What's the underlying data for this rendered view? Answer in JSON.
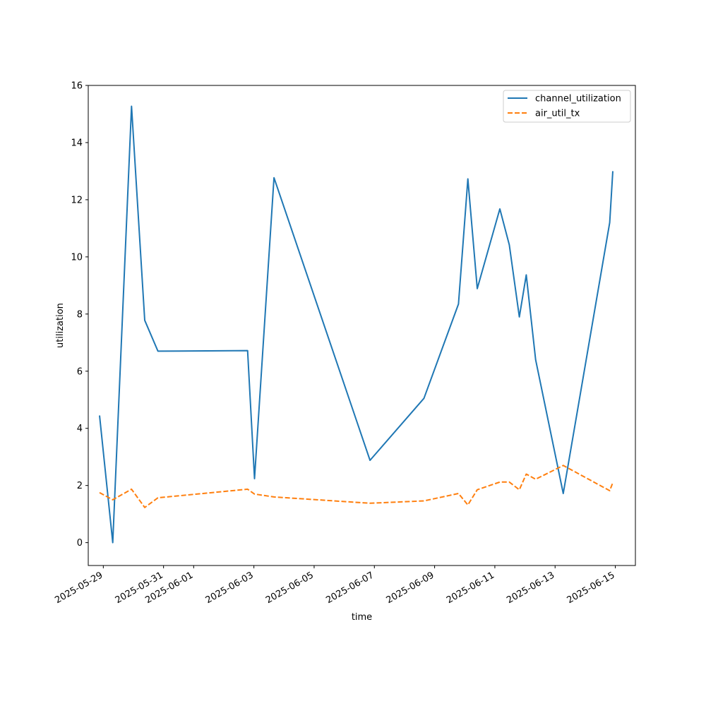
{
  "chart_data": {
    "type": "line",
    "xlabel": "time",
    "ylabel": "utilization",
    "xlim": [
      "2025-05-28 12:00",
      "2025-06-15 16:00"
    ],
    "ylim": [
      -0.8,
      16
    ],
    "x_ticks": [
      "2025-05-29",
      "2025-05-31",
      "2025-06-01",
      "2025-06-03",
      "2025-06-05",
      "2025-06-07",
      "2025-06-09",
      "2025-06-11",
      "2025-06-13",
      "2025-06-15"
    ],
    "y_ticks": [
      0,
      2,
      4,
      6,
      8,
      10,
      12,
      14,
      16
    ],
    "legend_position": "top-right",
    "grid": false,
    "series": [
      {
        "name": "channel_utilization",
        "color": "#1f77b4",
        "style": "solid",
        "points": [
          [
            "2025-05-28 21:00",
            4.45
          ],
          [
            "2025-05-29 07:30",
            0.0
          ],
          [
            "2025-05-29 22:30",
            15.27
          ],
          [
            "2025-05-30 09:00",
            7.78
          ],
          [
            "2025-05-30 19:30",
            6.7
          ],
          [
            "2025-06-02 19:00",
            6.72
          ],
          [
            "2025-06-03 00:30",
            2.24
          ],
          [
            "2025-06-03 16:00",
            12.77
          ],
          [
            "2025-06-06 20:30",
            2.88
          ],
          [
            "2025-06-08 15:30",
            5.05
          ],
          [
            "2025-06-09 19:00",
            8.35
          ],
          [
            "2025-06-10 02:30",
            12.73
          ],
          [
            "2025-06-10 10:00",
            8.89
          ],
          [
            "2025-06-11 04:00",
            11.68
          ],
          [
            "2025-06-11 11:30",
            10.42
          ],
          [
            "2025-06-11 19:30",
            7.9
          ],
          [
            "2025-06-12 01:00",
            9.37
          ],
          [
            "2025-06-12 08:30",
            6.4
          ],
          [
            "2025-06-13 06:30",
            1.72
          ],
          [
            "2025-06-14 19:30",
            11.2
          ],
          [
            "2025-06-14 22:00",
            13.0
          ]
        ]
      },
      {
        "name": "air_util_tx",
        "color": "#ff7f0e",
        "style": "dashed",
        "points": [
          [
            "2025-05-28 21:00",
            1.75
          ],
          [
            "2025-05-29 07:30",
            1.5
          ],
          [
            "2025-05-29 22:30",
            1.87
          ],
          [
            "2025-05-30 09:00",
            1.23
          ],
          [
            "2025-05-30 19:30",
            1.57
          ],
          [
            "2025-06-02 19:00",
            1.87
          ],
          [
            "2025-06-03 00:30",
            1.7
          ],
          [
            "2025-06-03 16:00",
            1.6
          ],
          [
            "2025-06-06 20:30",
            1.38
          ],
          [
            "2025-06-08 15:30",
            1.46
          ],
          [
            "2025-06-09 19:00",
            1.72
          ],
          [
            "2025-06-10 02:30",
            1.32
          ],
          [
            "2025-06-10 10:00",
            1.85
          ],
          [
            "2025-06-11 04:00",
            2.12
          ],
          [
            "2025-06-11 11:30",
            2.12
          ],
          [
            "2025-06-11 19:30",
            1.85
          ],
          [
            "2025-06-12 01:00",
            2.4
          ],
          [
            "2025-06-12 08:30",
            2.22
          ],
          [
            "2025-06-13 06:30",
            2.7
          ],
          [
            "2025-06-14 19:30",
            1.82
          ],
          [
            "2025-06-14 22:00",
            2.1
          ]
        ]
      }
    ]
  }
}
